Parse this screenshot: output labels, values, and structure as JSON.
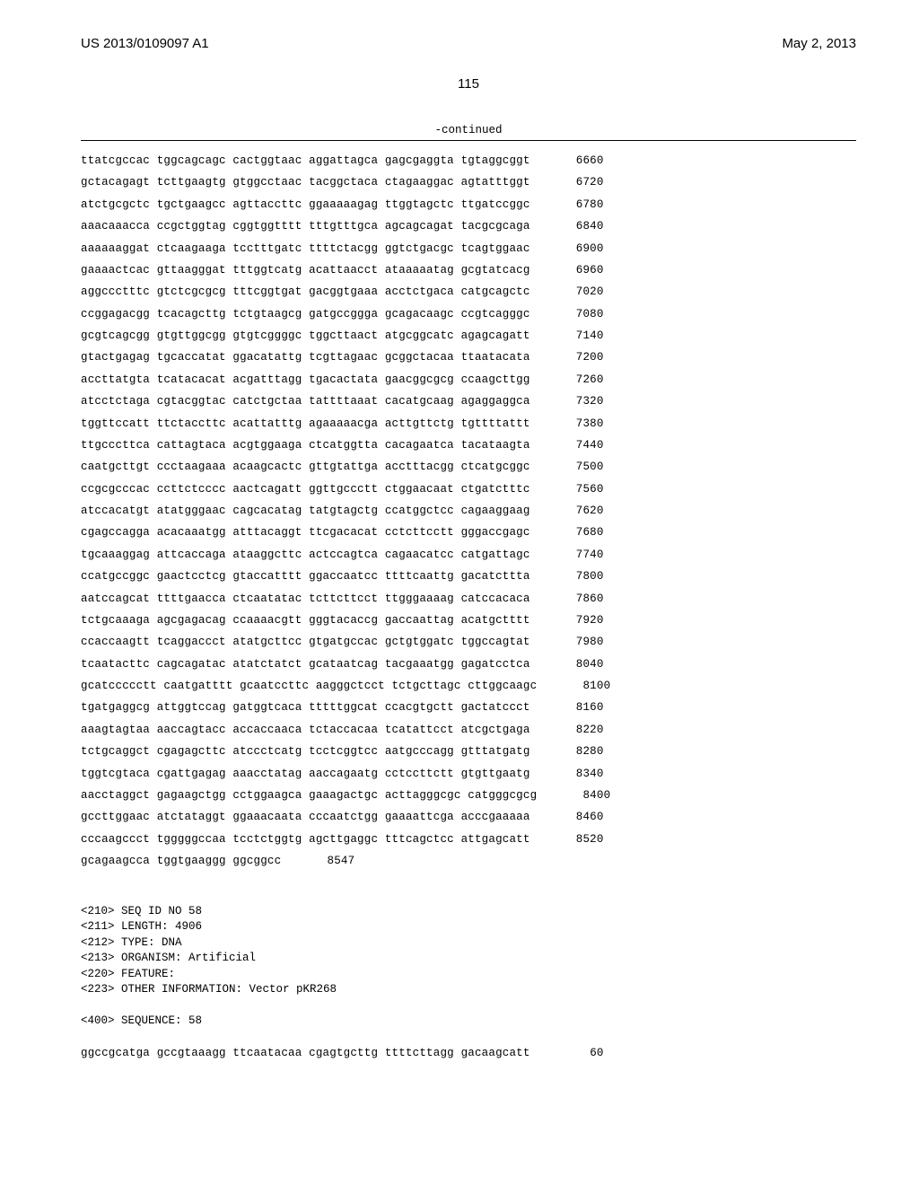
{
  "header": {
    "publication_number": "US 2013/0109097 A1",
    "publication_date": "May 2, 2013"
  },
  "page_number": "115",
  "continued_label": "-continued",
  "sequence_lines": [
    {
      "seq": "ttatcgccac tggcagcagc cactggtaac aggattagca gagcgaggta tgtaggcggt",
      "num": "6660"
    },
    {
      "seq": "gctacagagt tcttgaagtg gtggcctaac tacggctaca ctagaaggac agtatttggt",
      "num": "6720"
    },
    {
      "seq": "atctgcgctc tgctgaagcc agttaccttc ggaaaaagag ttggtagctc ttgatccggc",
      "num": "6780"
    },
    {
      "seq": "aaacaaacca ccgctggtag cggtggtttt tttgtttgca agcagcagat tacgcgcaga",
      "num": "6840"
    },
    {
      "seq": "aaaaaaggat ctcaagaaga tcctttgatc ttttctacgg ggtctgacgc tcagtggaac",
      "num": "6900"
    },
    {
      "seq": "gaaaactcac gttaagggat tttggtcatg acattaacct ataaaaatag gcgtatcacg",
      "num": "6960"
    },
    {
      "seq": "aggccctttc gtctcgcgcg tttcggtgat gacggtgaaa acctctgaca catgcagctc",
      "num": "7020"
    },
    {
      "seq": "ccggagacgg tcacagcttg tctgtaagcg gatgccggga gcagacaagc ccgtcagggc",
      "num": "7080"
    },
    {
      "seq": "gcgtcagcgg gtgttggcgg gtgtcggggc tggcttaact atgcggcatc agagcagatt",
      "num": "7140"
    },
    {
      "seq": "gtactgagag tgcaccatat ggacatattg tcgttagaac gcggctacaa ttaatacata",
      "num": "7200"
    },
    {
      "seq": "accttatgta tcatacacat acgatttagg tgacactata gaacggcgcg ccaagcttgg",
      "num": "7260"
    },
    {
      "seq": "atcctctaga cgtacggtac catctgctaa tattttaaat cacatgcaag agaggaggca",
      "num": "7320"
    },
    {
      "seq": "tggttccatt ttctaccttc acattatttg agaaaaacga acttgttctg tgttttattt",
      "num": "7380"
    },
    {
      "seq": "ttgcccttca cattagtaca acgtggaaga ctcatggtta cacagaatca tacataagta",
      "num": "7440"
    },
    {
      "seq": "caatgcttgt ccctaagaaa acaagcactc gttgtattga acctttacgg ctcatgcggc",
      "num": "7500"
    },
    {
      "seq": "ccgcgcccac ccttctcccc aactcagatt ggttgccctt ctggaacaat ctgatctttc",
      "num": "7560"
    },
    {
      "seq": "atccacatgt atatgggaac cagcacatag tatgtagctg ccatggctcc cagaaggaag",
      "num": "7620"
    },
    {
      "seq": "cgagccagga acacaaatgg atttacaggt ttcgacacat cctcttcctt gggaccgagc",
      "num": "7680"
    },
    {
      "seq": "tgcaaaggag attcaccaga ataaggcttc actccagtca cagaacatcc catgattagc",
      "num": "7740"
    },
    {
      "seq": "ccatgccggc gaactcctcg gtaccatttt ggaccaatcc ttttcaattg gacatcttta",
      "num": "7800"
    },
    {
      "seq": "aatccagcat ttttgaacca ctcaatatac tcttcttcct ttgggaaaag catccacaca",
      "num": "7860"
    },
    {
      "seq": "tctgcaaaga agcgagacag ccaaaacgtt gggtacaccg gaccaattag acatgctttt",
      "num": "7920"
    },
    {
      "seq": "ccaccaagtt tcaggaccct atatgcttcc gtgatgccac gctgtggatc tggccagtat",
      "num": "7980"
    },
    {
      "seq": "tcaatacttc cagcagatac atatctatct gcataatcag tacgaaatgg gagatcctca",
      "num": "8040"
    },
    {
      "seq": "gcatccccctt caatgatttt gcaatccttc aagggctcct tctgcttagc cttggcaagc",
      "num": "8100"
    },
    {
      "seq": "tgatgaggcg attggtccag gatggtcaca tttttggcat ccacgtgctt gactatccct",
      "num": "8160"
    },
    {
      "seq": "aaagtagtaa aaccagtacc accaccaaca tctaccacaa tcatattcct atcgctgaga",
      "num": "8220"
    },
    {
      "seq": "tctgcaggct cgagagcttc atccctcatg tcctcggtcc aatgcccagg gtttatgatg",
      "num": "8280"
    },
    {
      "seq": "tggtcgtaca cgattgagag aaacctatag aaccagaatg cctccttctt gtgttgaatg",
      "num": "8340"
    },
    {
      "seq": "aacctaggct gagaagctgg cctggaagca gaaagactgc acttagggcgc catgggcgcg",
      "num": "8400"
    },
    {
      "seq": "gccttggaac atctataggt ggaaacaata cccaatctgg gaaaattcga acccgaaaaa",
      "num": "8460"
    },
    {
      "seq": "cccaagccct tgggggccaa tcctctggtg agcttgaggc tttcagctcc attgagcatt",
      "num": "8520"
    },
    {
      "seq": "gcagaagcca tggtgaaggg ggcggcc",
      "num": "8547"
    }
  ],
  "meta": {
    "seq_id": "<210> SEQ ID NO 58",
    "length": "<211> LENGTH: 4906",
    "type": "<212> TYPE: DNA",
    "organism": "<213> ORGANISM: Artificial",
    "feature": "<220> FEATURE:",
    "other_info": "<223> OTHER INFORMATION: Vector pKR268",
    "sequence_header": "<400> SEQUENCE: 58"
  },
  "sequence_58_lines": [
    {
      "seq": "ggccgcatga gccgtaaagg ttcaatacaa cgagtgcttg ttttcttagg gacaagcatt",
      "num": "60"
    }
  ]
}
